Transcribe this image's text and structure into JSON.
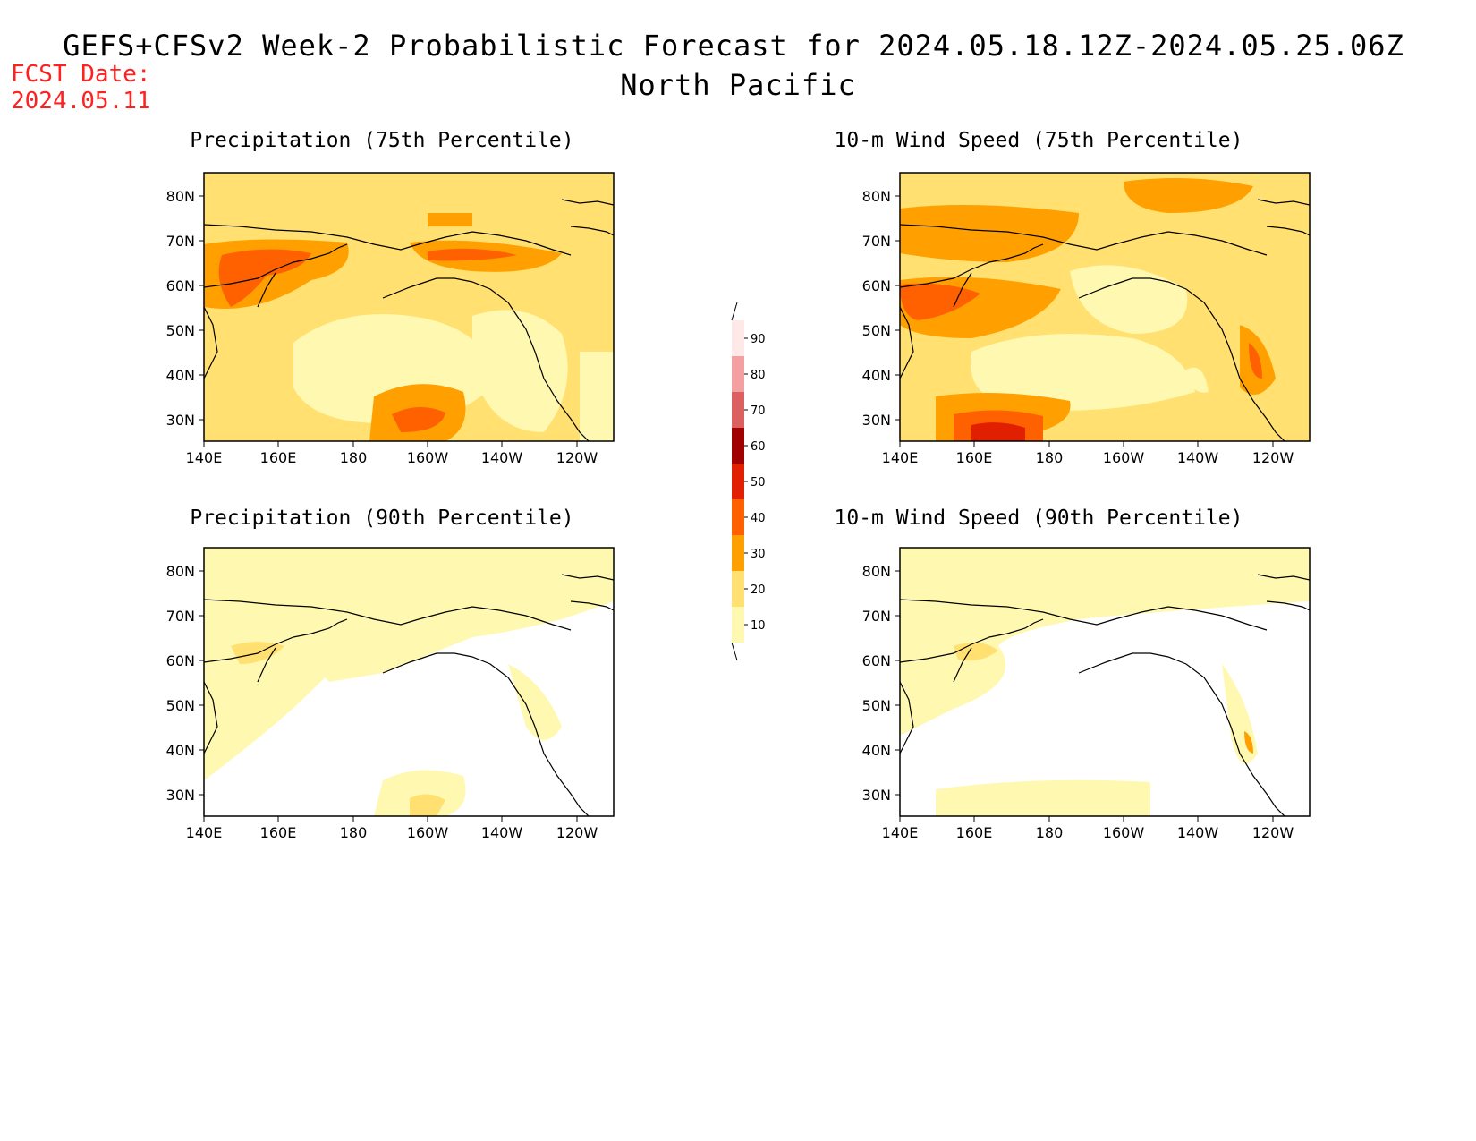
{
  "header": {
    "title_line1": "GEFS+CFSv2 Week-2 Probabilistic Forecast for 2024.05.18.12Z-2024.05.25.06Z",
    "title_line2": "North Pacific",
    "fcst_label": "FCST Date:",
    "fcst_date": "2024.05.11"
  },
  "panels": [
    {
      "id": "precip75",
      "title": "Precipitation (75th Percentile)"
    },
    {
      "id": "wind75",
      "title": "10-m Wind Speed (75th Percentile)"
    },
    {
      "id": "precip90",
      "title": "Precipitation (90th Percentile)"
    },
    {
      "id": "wind90",
      "title": "10-m Wind Speed (90th Percentile)"
    }
  ],
  "axes": {
    "lat_labels": [
      "80N",
      "70N",
      "60N",
      "50N",
      "40N",
      "30N"
    ],
    "lon_labels": [
      "140E",
      "160E",
      "180",
      "160W",
      "140W",
      "120W"
    ]
  },
  "colorbar": {
    "levels": [
      "90",
      "80",
      "70",
      "60",
      "50",
      "40",
      "30",
      "20",
      "10"
    ],
    "colors": [
      "#ffe8e8",
      "#f5a0a0",
      "#dd6060",
      "#a00000",
      "#e02000",
      "#ff6000",
      "#ffa000",
      "#ffe070",
      "#fff8b0"
    ]
  },
  "map_colors": {
    "c10": "#fff8b0",
    "c20": "#ffe070",
    "c30": "#ffa000",
    "c40": "#ff6000",
    "c50": "#e02000",
    "c60": "#a00000"
  }
}
